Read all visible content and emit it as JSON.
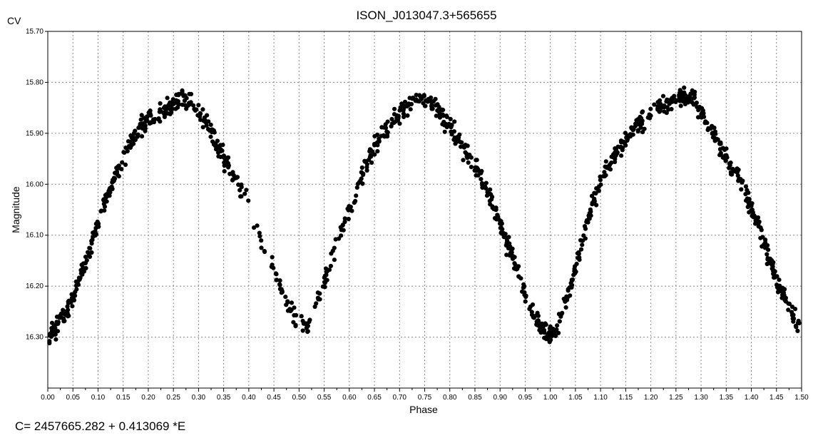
{
  "chart_data": {
    "type": "scatter",
    "title": "ISON_J013047.3+565655",
    "corner_label": "CV",
    "xlabel": "Phase",
    "ylabel": "Magnitude",
    "xlim": [
      0.0,
      1.5
    ],
    "ylim": [
      16.4,
      15.7
    ],
    "y_inverted": true,
    "grid": true,
    "x_ticks": [
      "0.00",
      "0.05",
      "0.10",
      "0.15",
      "0.20",
      "0.25",
      "0.30",
      "0.35",
      "0.40",
      "0.45",
      "0.50",
      "0.55",
      "0.60",
      "0.65",
      "0.70",
      "0.75",
      "0.80",
      "0.85",
      "0.90",
      "0.95",
      "1.00",
      "1.05",
      "1.10",
      "1.15",
      "1.20",
      "1.25",
      "1.30",
      "1.35",
      "1.40",
      "1.45",
      "1.50"
    ],
    "y_ticks": [
      "15.70",
      "15.80",
      "15.90",
      "16.00",
      "16.10",
      "16.20",
      "16.30"
    ],
    "light_curve": {
      "phase": [
        0.0,
        0.02,
        0.05,
        0.08,
        0.1,
        0.12,
        0.15,
        0.18,
        0.2,
        0.22,
        0.25,
        0.27,
        0.29,
        0.31,
        0.33,
        0.35,
        0.37,
        0.39,
        0.41,
        0.43,
        0.45,
        0.47,
        0.49,
        0.51,
        0.53,
        0.55,
        0.57,
        0.6,
        0.63,
        0.66,
        0.69,
        0.72,
        0.74,
        0.76,
        0.78,
        0.8,
        0.82,
        0.85,
        0.88,
        0.9,
        0.92,
        0.94,
        0.96,
        0.98,
        1.0,
        1.02,
        1.04,
        1.06,
        1.08,
        1.1,
        1.13,
        1.16,
        1.19,
        1.21,
        1.24,
        1.26,
        1.28,
        1.3,
        1.32,
        1.34,
        1.36,
        1.38,
        1.4,
        1.42,
        1.44,
        1.46,
        1.48,
        1.5
      ],
      "magnitude": [
        16.3,
        16.28,
        16.22,
        16.14,
        16.07,
        16.02,
        15.95,
        15.89,
        15.87,
        15.86,
        15.84,
        15.83,
        15.84,
        15.87,
        15.91,
        15.95,
        15.98,
        16.02,
        16.07,
        16.12,
        16.17,
        16.22,
        16.26,
        16.28,
        16.25,
        16.19,
        16.13,
        16.05,
        15.97,
        15.91,
        15.87,
        15.84,
        15.83,
        15.84,
        15.86,
        15.89,
        15.92,
        15.96,
        16.02,
        16.08,
        16.13,
        16.19,
        16.24,
        16.28,
        16.3,
        16.27,
        16.2,
        16.13,
        16.05,
        15.99,
        15.94,
        15.9,
        15.87,
        15.85,
        15.84,
        15.83,
        15.83,
        15.86,
        15.89,
        15.93,
        15.97,
        16.0,
        16.05,
        16.1,
        16.16,
        16.21,
        16.25,
        16.29
      ]
    }
  },
  "ephemeris": "C= 2457665.282 + 0.413069 *E"
}
